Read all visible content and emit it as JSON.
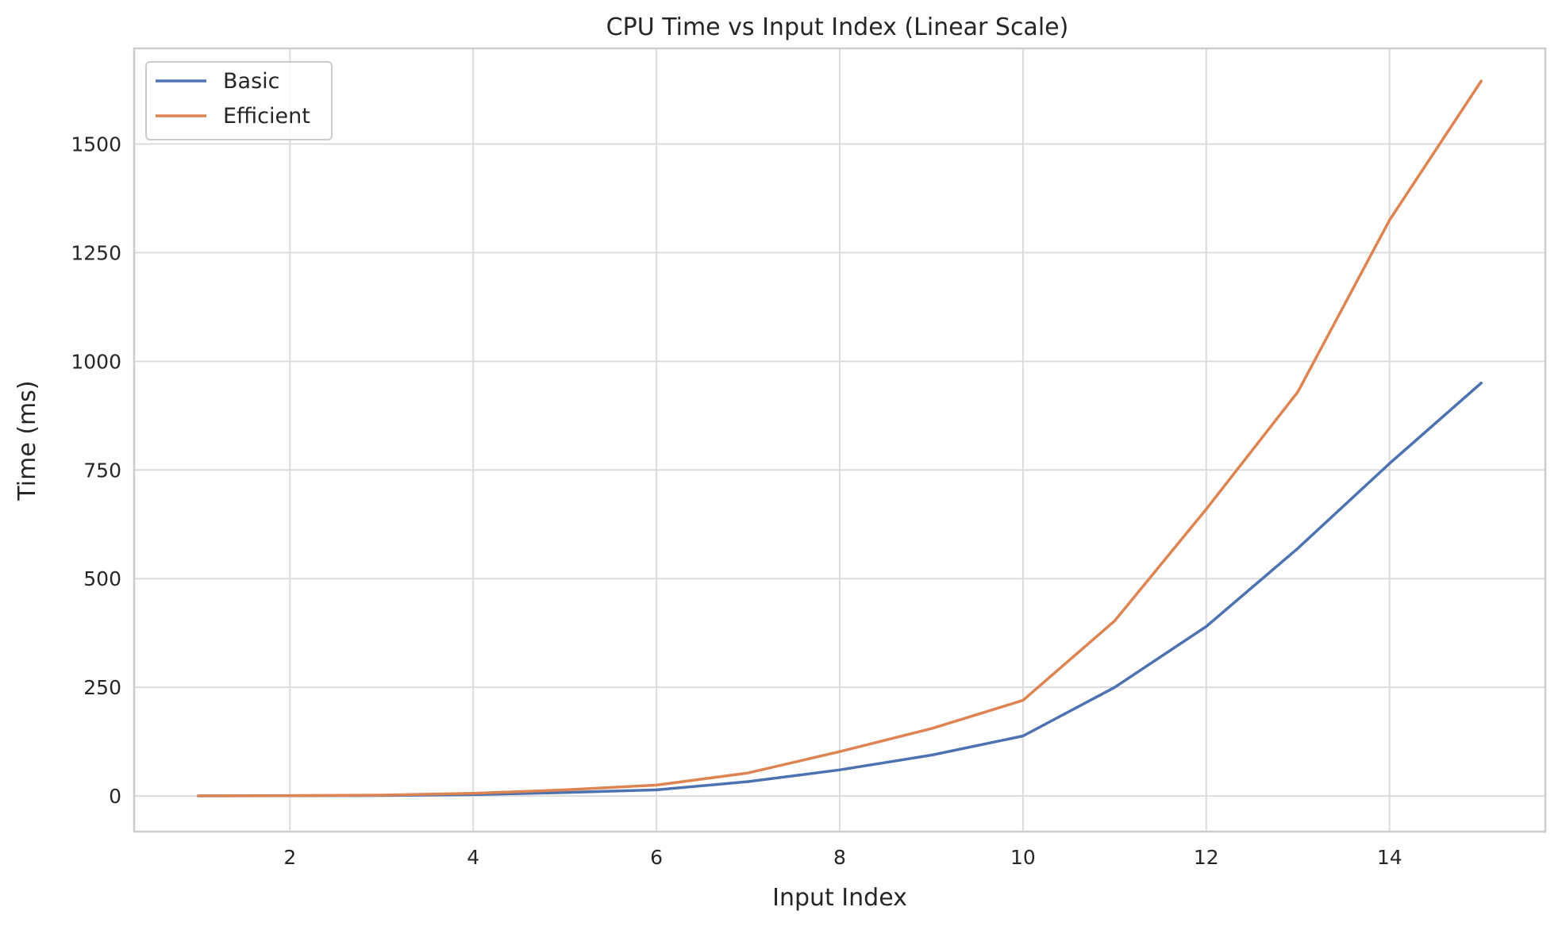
{
  "chart_data": {
    "type": "line",
    "title": "CPU Time vs Input Index (Linear Scale)",
    "xlabel": "Input Index",
    "ylabel": "Time (ms)",
    "xlim": [
      0.3,
      15.7
    ],
    "ylim": [
      -82,
      1720
    ],
    "xticks": [
      2,
      4,
      6,
      8,
      10,
      12,
      14
    ],
    "yticks": [
      0,
      250,
      500,
      750,
      1000,
      1250,
      1500
    ],
    "grid": true,
    "legend_position": "top-left",
    "x": [
      1,
      2,
      3,
      4,
      5,
      6,
      7,
      8,
      9,
      10,
      11,
      12,
      13,
      14,
      15
    ],
    "series": [
      {
        "name": "Basic",
        "color": "#4c72b0",
        "values": [
          0.2,
          0.5,
          1,
          3,
          8,
          14,
          33,
          60,
          94,
          138,
          250,
          390,
          570,
          765,
          950
        ]
      },
      {
        "name": "Efficient",
        "color": "#dd8452",
        "values": [
          0.3,
          0.8,
          2,
          6,
          14,
          25,
          53,
          102,
          155,
          220,
          403,
          660,
          930,
          1325,
          1645
        ]
      }
    ]
  }
}
